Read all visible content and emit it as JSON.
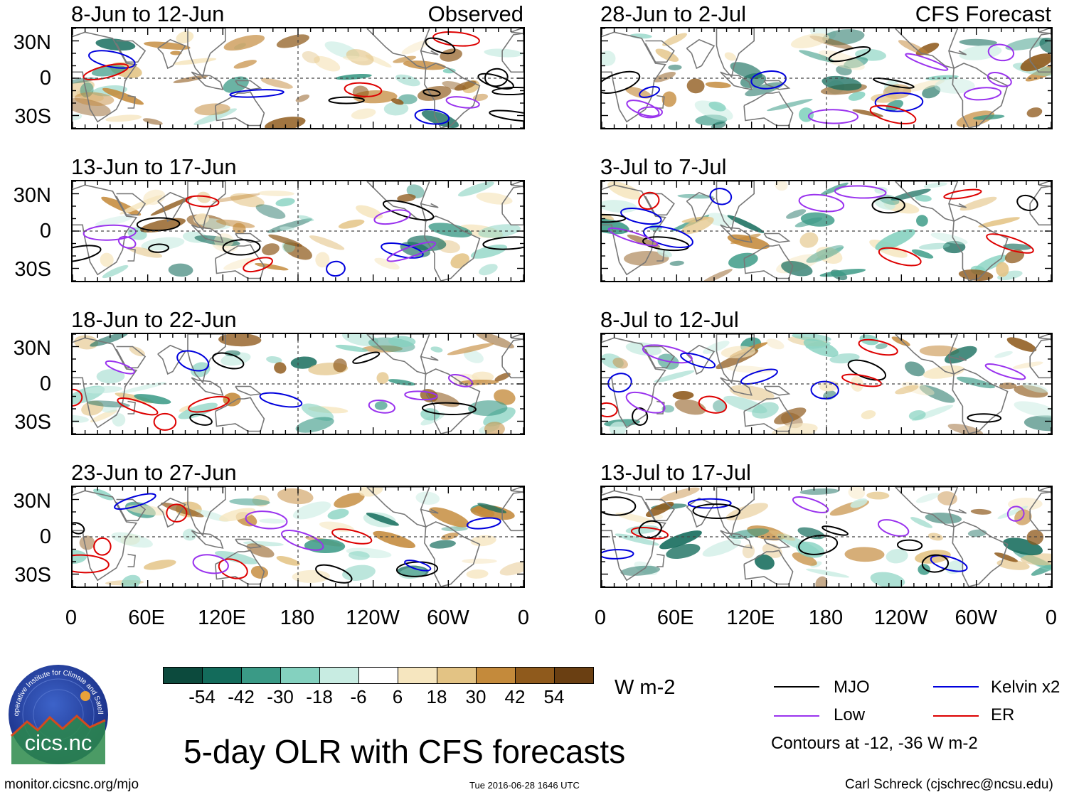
{
  "panels": [
    {
      "title": "8-Jun to 12-Jun",
      "tag": "Observed",
      "seed": 11
    },
    {
      "title": "13-Jun to 17-Jun",
      "tag": "",
      "seed": 23
    },
    {
      "title": "18-Jun to 22-Jun",
      "tag": "",
      "seed": 37
    },
    {
      "title": "23-Jun to 27-Jun",
      "tag": "",
      "seed": 41
    },
    {
      "title": "28-Jun to 2-Jul",
      "tag": "CFS Forecast",
      "seed": 53
    },
    {
      "title": "3-Jul to 7-Jul",
      "tag": "",
      "seed": 67
    },
    {
      "title": "8-Jul to 12-Jul",
      "tag": "",
      "seed": 79
    },
    {
      "title": "13-Jul to 17-Jul",
      "tag": "",
      "seed": 83
    }
  ],
  "lat_labels": [
    "30N",
    "0",
    "30S"
  ],
  "lon_labels": [
    "0",
    "60E",
    "120E",
    "180",
    "120W",
    "60W",
    "0"
  ],
  "colorbar": {
    "colors": [
      "#0c4a3d",
      "#136b5b",
      "#3a9a86",
      "#84d1bf",
      "#c8ece2",
      "#ffffff",
      "#f6e6bf",
      "#e3c384",
      "#c48a3b",
      "#8f5a1c",
      "#6a3f12"
    ],
    "labels": [
      "-54",
      "-42",
      "-30",
      "-18",
      "-6",
      "6",
      "18",
      "30",
      "42",
      "54"
    ],
    "units": "W m-2"
  },
  "legend": {
    "items": [
      {
        "label": "MJO",
        "color": "#000000"
      },
      {
        "label": "Kelvin x2",
        "color": "#0000dd"
      },
      {
        "label": "Low",
        "color": "#9a33ee"
      },
      {
        "label": "ER",
        "color": "#dd0000"
      }
    ],
    "note": "Contours at -12, -36 W m-2"
  },
  "main_title": "5-day OLR with CFS forecasts",
  "logo": {
    "text": "cics.nc",
    "arc_text": "Cooperative Institute for Climate and Satellites"
  },
  "footer": {
    "left": "monitor.cicsnc.org/mjo",
    "center": "Tue 2016-06-28 1646 UTC",
    "right": "Carl Schreck (cjschrec@ncsu.edu)"
  }
}
